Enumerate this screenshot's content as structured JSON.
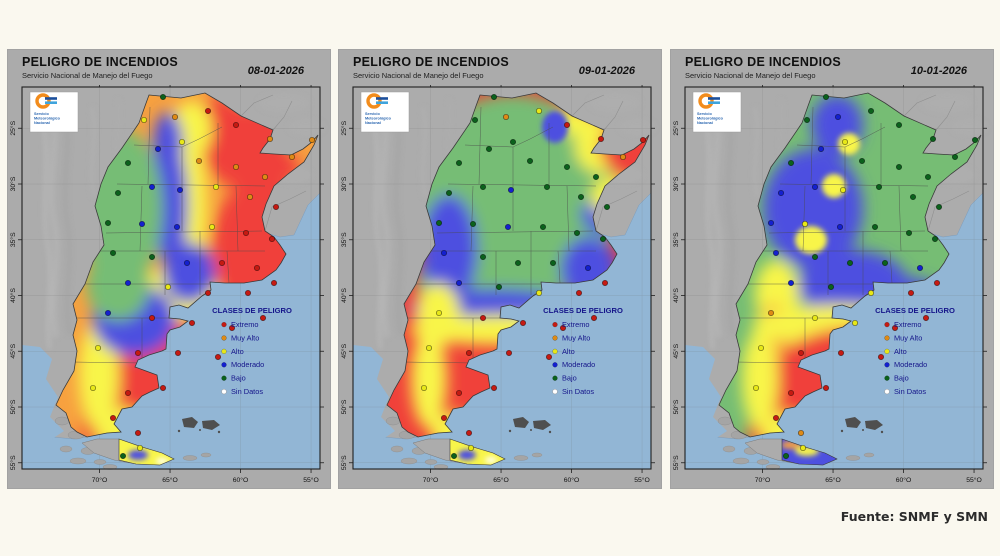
{
  "page": {
    "background": "#FAF8EF",
    "source_note": "Fuente: SNMF y SMN"
  },
  "palette": {
    "e": "#F0413A",
    "ma": "#F7A13F",
    "a": "#F8F54A",
    "mo": "#4D50E0",
    "b": "#76BD74",
    "sd": "#FFFFFF",
    "ocean": "#92B6D5",
    "land": "#ACACAC",
    "panel": "#ABABAB",
    "frame": "#1F1F1F",
    "legend_text": "#15158A"
  },
  "dot_palette": {
    "e": "#C51A12",
    "ma": "#DE8A16",
    "a": "#E8E818",
    "mo": "#1420CE",
    "b": "#0B611C",
    "sd": "#FFFFFF"
  },
  "legend": {
    "title": "CLASES DE PELIGRO",
    "items": [
      {
        "label": "Extremo",
        "class": "e"
      },
      {
        "label": "Muy Alto",
        "class": "ma"
      },
      {
        "label": "Alto",
        "class": "a"
      },
      {
        "label": "Moderado",
        "class": "mo"
      },
      {
        "label": "Bajo",
        "class": "b"
      },
      {
        "label": "Sin Datos",
        "class": "sd"
      }
    ]
  },
  "axes": {
    "lat": [
      [
        25,
        "25°S"
      ],
      [
        30,
        "30°S"
      ],
      [
        35,
        "35°S"
      ],
      [
        40,
        "40°S"
      ],
      [
        45,
        "45°S"
      ],
      [
        50,
        "50°S"
      ],
      [
        55,
        "55°S"
      ]
    ],
    "lon": [
      [
        70,
        "70°O"
      ],
      [
        65,
        "65°O"
      ],
      [
        60,
        "60°O"
      ],
      [
        55,
        "55°O"
      ]
    ]
  },
  "logo": {
    "lines": [
      "Servicio",
      "Meteorológico",
      "Nacional"
    ]
  },
  "stations": [
    [
      141,
      10,
      "b",
      "b",
      "b"
    ],
    [
      153,
      30,
      "ma",
      "ma",
      "mo"
    ],
    [
      122,
      33,
      "a",
      "b",
      "b"
    ],
    [
      186,
      24,
      "e",
      "a",
      "b"
    ],
    [
      214,
      38,
      "e",
      "e",
      "b"
    ],
    [
      248,
      52,
      "ma",
      "e",
      "b"
    ],
    [
      290,
      53,
      "ma",
      "e",
      "b"
    ],
    [
      270,
      70,
      "ma",
      "ma",
      "b"
    ],
    [
      160,
      55,
      "a",
      "b",
      "a"
    ],
    [
      136,
      62,
      "mo",
      "b",
      "mo"
    ],
    [
      106,
      76,
      "b",
      "b",
      "b"
    ],
    [
      177,
      74,
      "ma",
      "b",
      "b"
    ],
    [
      214,
      80,
      "ma",
      "b",
      "b"
    ],
    [
      243,
      90,
      "ma",
      "b",
      "b"
    ],
    [
      96,
      106,
      "b",
      "b",
      "mo"
    ],
    [
      130,
      100,
      "mo",
      "b",
      "mo"
    ],
    [
      158,
      103,
      "mo",
      "mo",
      "a"
    ],
    [
      194,
      100,
      "a",
      "b",
      "b"
    ],
    [
      228,
      110,
      "ma",
      "b",
      "b"
    ],
    [
      254,
      120,
      "e",
      "b",
      "b"
    ],
    [
      86,
      136,
      "b",
      "b",
      "mo"
    ],
    [
      120,
      137,
      "mo",
      "b",
      "a"
    ],
    [
      155,
      140,
      "mo",
      "mo",
      "mo"
    ],
    [
      190,
      140,
      "a",
      "b",
      "b"
    ],
    [
      224,
      146,
      "e",
      "b",
      "b"
    ],
    [
      250,
      152,
      "e",
      "b",
      "b"
    ],
    [
      91,
      166,
      "b",
      "mo",
      "mo"
    ],
    [
      130,
      170,
      "b",
      "b",
      "b"
    ],
    [
      165,
      176,
      "mo",
      "b",
      "b"
    ],
    [
      200,
      176,
      "e",
      "b",
      "b"
    ],
    [
      235,
      181,
      "e",
      "mo",
      "mo"
    ],
    [
      106,
      196,
      "mo",
      "mo",
      "mo"
    ],
    [
      146,
      200,
      "a",
      "b",
      "b"
    ],
    [
      186,
      206,
      "e",
      "a",
      "a"
    ],
    [
      226,
      206,
      "e",
      "e",
      "e"
    ],
    [
      252,
      196,
      "e",
      "e",
      "e"
    ],
    [
      86,
      226,
      "mo",
      "a",
      "ma"
    ],
    [
      130,
      231,
      "e",
      "e",
      "a"
    ],
    [
      170,
      236,
      "e",
      "e",
      "a"
    ],
    [
      210,
      241,
      "e",
      "e",
      "e"
    ],
    [
      241,
      231,
      "e",
      "e",
      "e"
    ],
    [
      76,
      261,
      "a",
      "a",
      "a"
    ],
    [
      116,
      266,
      "e",
      "e",
      "e"
    ],
    [
      156,
      266,
      "e",
      "e",
      "e"
    ],
    [
      196,
      270,
      "e",
      "e",
      "e"
    ],
    [
      71,
      301,
      "a",
      "a",
      "a"
    ],
    [
      106,
      306,
      "e",
      "e",
      "e"
    ],
    [
      141,
      301,
      "e",
      "e",
      "e"
    ],
    [
      91,
      331,
      "e",
      "e",
      "e"
    ],
    [
      116,
      346,
      "e",
      "e",
      "ma"
    ],
    [
      101,
      369,
      "b",
      "b",
      "b"
    ],
    [
      118,
      361,
      "a",
      "a",
      "a"
    ]
  ],
  "maps": [
    {
      "title": "PELIGRO DE INCENDIOS",
      "subtitle": "Servicio Nacional de Manejo del Fuego",
      "date": "08-01-2026",
      "base": "ma",
      "field": [
        [
          "e",
          196,
          28,
          22,
          18
        ],
        [
          "e",
          233,
          62,
          52,
          42
        ],
        [
          "e",
          242,
          160,
          52,
          70
        ],
        [
          "e",
          196,
          252,
          85,
          50
        ],
        [
          "e",
          118,
          298,
          52,
          65
        ],
        [
          "e",
          97,
          338,
          38,
          36
        ],
        [
          "ma",
          290,
          55,
          25,
          20
        ],
        [
          "a",
          170,
          42,
          20,
          28
        ],
        [
          "a",
          163,
          120,
          22,
          85
        ],
        [
          "a",
          152,
          208,
          45,
          26
        ],
        [
          "a",
          77,
          288,
          20,
          55
        ],
        [
          "a",
          101,
          344,
          26,
          22
        ],
        [
          "mo",
          146,
          57,
          15,
          32
        ],
        [
          "mo",
          149,
          118,
          17,
          62
        ],
        [
          "mo",
          167,
          186,
          26,
          30
        ],
        [
          "mo",
          112,
          233,
          42,
          36
        ],
        [
          "b",
          99,
          122,
          42,
          80
        ],
        [
          "b",
          96,
          198,
          32,
          36
        ]
      ],
      "tdf": {
        "base": "a",
        "patches": [
          [
            "mo",
            116,
            368,
            10,
            5
          ],
          [
            "sd",
            140,
            374,
            6,
            3
          ]
        ]
      }
    },
    {
      "title": "PELIGRO DE INCENDIOS",
      "subtitle": "Servicio Nacional de Manejo del Fuego",
      "date": "09-01-2026",
      "base": "e",
      "field": [
        [
          "b",
          160,
          112,
          105,
          105
        ],
        [
          "b",
          118,
          196,
          55,
          45
        ],
        [
          "mo",
          96,
          163,
          28,
          55
        ],
        [
          "mo",
          142,
          222,
          85,
          20
        ],
        [
          "mo",
          236,
          182,
          28,
          32
        ],
        [
          "mo",
          202,
          40,
          13,
          16
        ],
        [
          "mo",
          250,
          128,
          22,
          18
        ],
        [
          "a",
          246,
          58,
          24,
          28
        ],
        [
          "a",
          260,
          110,
          22,
          20
        ],
        [
          "a",
          222,
          34,
          18,
          14
        ],
        [
          "e",
          285,
          60,
          38,
          32
        ],
        [
          "e",
          298,
          48,
          20,
          16
        ],
        [
          "a",
          150,
          243,
          95,
          15
        ],
        [
          "a",
          85,
          228,
          22,
          32
        ],
        [
          "a",
          76,
          292,
          18,
          50
        ],
        [
          "a",
          102,
          346,
          24,
          20
        ]
      ],
      "tdf": {
        "base": "a",
        "patches": [
          [
            "mo",
            114,
            368,
            9,
            5
          ],
          [
            "sd",
            138,
            373,
            6,
            3
          ]
        ]
      }
    },
    {
      "title": "PELIGRO DE INCENDIOS",
      "subtitle": "Servicio Nacional de Manejo del Fuego",
      "date": "10-01-2026",
      "base": "b",
      "field": [
        [
          "mo",
          152,
          38,
          26,
          30
        ],
        [
          "mo",
          128,
          122,
          50,
          60
        ],
        [
          "mo",
          168,
          198,
          55,
          35
        ],
        [
          "mo",
          227,
          213,
          32,
          22
        ],
        [
          "a",
          164,
          57,
          11,
          11
        ],
        [
          "a",
          149,
          99,
          12,
          12
        ],
        [
          "a",
          126,
          153,
          16,
          14
        ],
        [
          "a",
          92,
          208,
          22,
          35
        ],
        [
          "ma",
          89,
          248,
          20,
          30
        ],
        [
          "a",
          152,
          238,
          85,
          20
        ],
        [
          "e",
          243,
          248,
          42,
          38
        ],
        [
          "e",
          175,
          285,
          85,
          45
        ],
        [
          "e",
          118,
          318,
          52,
          50
        ],
        [
          "e",
          97,
          345,
          35,
          30
        ],
        [
          "a",
          75,
          292,
          18,
          50
        ],
        [
          "a",
          101,
          347,
          24,
          20
        ]
      ],
      "tdf": {
        "base": "mo",
        "patches": [
          [
            "ma",
            106,
            358,
            10,
            4
          ],
          [
            "a",
            122,
            364,
            12,
            5
          ]
        ]
      }
    }
  ]
}
